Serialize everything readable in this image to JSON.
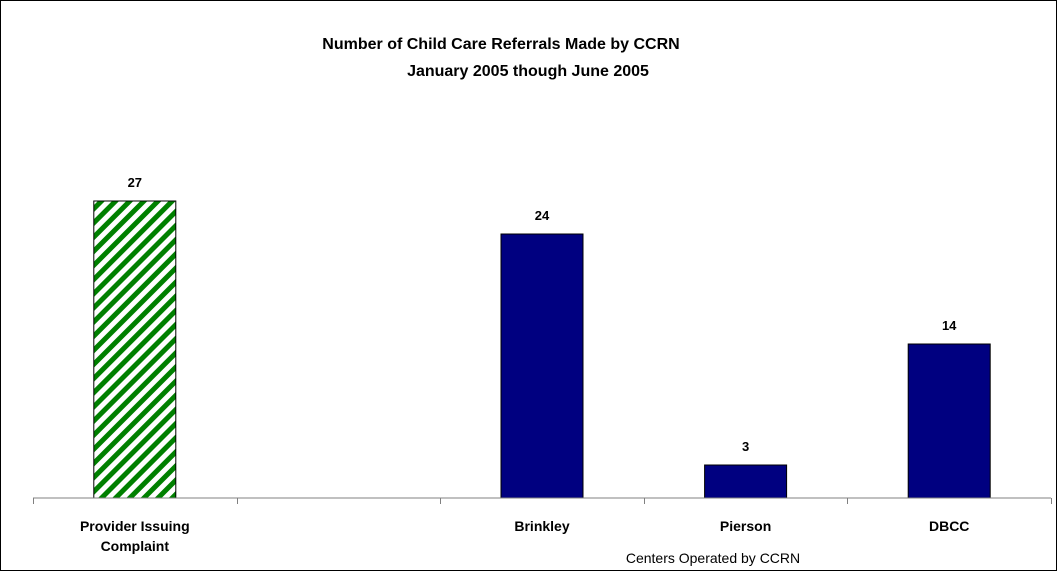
{
  "chart_data": {
    "type": "bar",
    "title": "Number of Child Care Referrals Made by CCRN",
    "subtitle": "January 2005 though June 2005",
    "categories": [
      "Provider Issuing Complaint",
      "",
      "Brinkley",
      "Pierson",
      "DBCC"
    ],
    "values": [
      27,
      null,
      24,
      3,
      14
    ],
    "data_labels": [
      "27",
      "",
      "24",
      "3",
      "14"
    ],
    "group_label": "Centers Operated by CCRN",
    "xlabel": "",
    "ylabel": "",
    "ylim": [
      0,
      30
    ],
    "grid": false,
    "legend": "none",
    "bar_styles": [
      "hatched-green",
      "none",
      "solid-navy",
      "solid-navy",
      "solid-navy"
    ],
    "colors": {
      "navy": "#000080",
      "green": "#008000",
      "hatch_bg": "#ffffff",
      "axis": "#808080"
    }
  }
}
